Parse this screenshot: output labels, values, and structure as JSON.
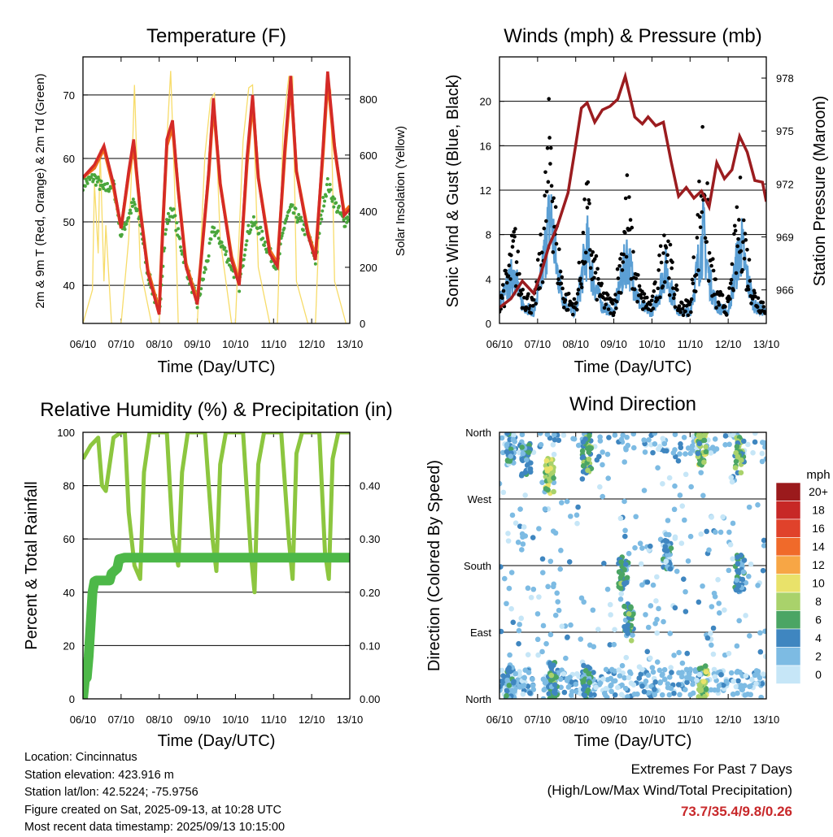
{
  "panels": {
    "temperature": {
      "title": "Temperature (F)",
      "ylabel_left": "2m & 9m T (Red, Orange) & 2m Td (Green)",
      "ylabel_right": "Solar Insolation (Yellow)",
      "xlabel": "Time (Day/UTC)"
    },
    "winds": {
      "title": "Winds (mph) & Pressure (mb)",
      "ylabel_left": "Sonic Wind & Gust (Blue, Black)",
      "ylabel_right": "Station Pressure (Maroon)",
      "xlabel": "Time (Day/UTC)"
    },
    "humidity": {
      "title": "Relative Humidity (%) & Precipitation (in)",
      "ylabel_left": "Percent & Total Rainfall",
      "xlabel": "Time (Day/UTC)"
    },
    "direction": {
      "title": "Wind Direction",
      "ylabel_left": "Direction (Colored By Speed)",
      "xlabel": "Time (Day/UTC)",
      "legend_title": "mph"
    }
  },
  "station_info": {
    "location": "Location: Cincinnatus",
    "elevation": "Station elevation: 423.916 m",
    "latlon": "Station lat/lon: 42.5224; -75.9756",
    "created": "Figure created on Sat, 2025-09-13, at 10:28 UTC",
    "recent": "Most recent data timestamp: 2025/09/13 10:15:00"
  },
  "extremes": {
    "line1": "Extremes For Past 7 Days",
    "line2": "(High/Low/Max Wind/Total Precipitation)",
    "values": "73.7/35.4/9.8/0.26"
  },
  "colors": {
    "temp_2m": "#d42a27",
    "temp_9m": "#ef6b1a",
    "dewpoint": "#4aa63c",
    "solar": "#f7dc6a",
    "wind": "#5b9fd4",
    "gust": "#000000",
    "pressure": "#9b1c1f",
    "rh": "#8cc63f",
    "precip": "#4db848",
    "extremes": "#c8282a"
  },
  "chart_data": [
    {
      "type": "line",
      "title": "Temperature (F)",
      "xlabel": "Time (Day/UTC)",
      "ylabel": "2m & 9m T (Red, Orange) & 2m Td (Green)",
      "ylabel_right": "Solar Insolation (Yellow)",
      "xlim": [
        0,
        7
      ],
      "ylim": [
        34,
        76
      ],
      "ylim_right": [
        0,
        950
      ],
      "x_ticks": [
        "06/10",
        "07/10",
        "08/10",
        "09/10",
        "10/10",
        "11/10",
        "12/10",
        "13/10"
      ],
      "y_ticks": [
        40,
        50,
        60,
        70
      ],
      "y_ticks_right": [
        0,
        200,
        400,
        600,
        800
      ],
      "grid": true,
      "series": [
        {
          "name": "2m T",
          "axis": "left",
          "x": [
            0,
            0.3,
            0.55,
            0.8,
            1.0,
            1.2,
            1.33,
            1.5,
            1.7,
            2.0,
            2.1,
            2.2,
            2.35,
            2.5,
            2.7,
            3.0,
            3.3,
            3.42,
            3.6,
            3.9,
            4.1,
            4.3,
            4.45,
            4.6,
            4.9,
            5.1,
            5.3,
            5.45,
            5.6,
            5.9,
            6.1,
            6.3,
            6.42,
            6.6,
            6.85,
            7.0
          ],
          "y": [
            57,
            59,
            62,
            56,
            49,
            58,
            63,
            52,
            42,
            35.4,
            50,
            63,
            66,
            55,
            43,
            37,
            58,
            69.5,
            56,
            44,
            40,
            60,
            70,
            57,
            45,
            43,
            62,
            73,
            58,
            48,
            44,
            62,
            73.7,
            62,
            51,
            52
          ]
        },
        {
          "name": "9m T",
          "axis": "left",
          "x": [
            0,
            0.3,
            0.55,
            0.8,
            1.0,
            1.2,
            1.33,
            1.5,
            1.7,
            2.0,
            2.1,
            2.2,
            2.35,
            2.5,
            2.7,
            3.0,
            3.3,
            3.42,
            3.6,
            3.9,
            4.1,
            4.3,
            4.45,
            4.6,
            4.9,
            5.1,
            5.3,
            5.45,
            5.6,
            5.9,
            6.1,
            6.3,
            6.42,
            6.6,
            6.85,
            7.0
          ],
          "y": [
            57,
            58.5,
            61.5,
            55.5,
            49,
            57.5,
            62,
            52,
            42.5,
            36,
            50,
            62,
            65,
            55,
            43.5,
            37.5,
            57.5,
            68.5,
            56,
            44.5,
            40.5,
            59,
            69,
            57,
            45.5,
            43.5,
            61,
            72,
            58,
            48.5,
            44.5,
            61,
            72.5,
            61.5,
            51.5,
            52.5
          ]
        },
        {
          "name": "2m Td",
          "axis": "left",
          "x": [
            0,
            0.3,
            0.55,
            0.8,
            1.0,
            1.2,
            1.33,
            1.5,
            1.7,
            2.0,
            2.1,
            2.2,
            2.35,
            2.5,
            2.7,
            3.0,
            3.3,
            3.42,
            3.6,
            3.9,
            4.1,
            4.3,
            4.45,
            4.6,
            4.9,
            5.1,
            5.3,
            5.45,
            5.6,
            5.9,
            6.1,
            6.3,
            6.42,
            6.6,
            6.85,
            7.0
          ],
          "y": [
            56,
            57,
            55,
            56,
            48,
            51,
            53,
            50,
            42,
            35.4,
            44,
            50,
            52,
            48,
            43,
            37,
            45,
            49,
            47,
            43,
            40,
            48,
            50,
            49,
            45,
            43,
            50,
            52,
            51,
            48,
            44,
            53,
            56,
            53,
            50,
            51
          ]
        },
        {
          "name": "Solar Insolation",
          "axis": "right",
          "x": [
            0,
            0.25,
            0.3,
            0.4,
            0.45,
            0.55,
            0.6,
            0.75,
            1.0,
            1.2,
            1.3,
            1.35,
            1.5,
            1.8,
            2.0,
            2.1,
            2.2,
            2.3,
            2.4,
            2.5,
            2.8,
            3.0,
            3.2,
            3.35,
            3.45,
            3.6,
            3.9,
            4.0,
            4.2,
            4.35,
            4.45,
            4.6,
            4.9,
            5.1,
            5.25,
            5.4,
            5.5,
            5.6,
            5.9,
            6.1,
            6.3,
            6.4,
            6.5,
            6.6,
            6.9,
            7.0
          ],
          "y": [
            0,
            120,
            500,
            250,
            620,
            150,
            350,
            0,
            0,
            300,
            620,
            850,
            200,
            0,
            0,
            320,
            650,
            900,
            500,
            0,
            0,
            0,
            600,
            800,
            820,
            300,
            0,
            0,
            650,
            840,
            850,
            200,
            0,
            0,
            700,
            880,
            880,
            150,
            0,
            0,
            700,
            880,
            830,
            150,
            0,
            0
          ]
        }
      ]
    },
    {
      "type": "line",
      "title": "Winds (mph) & Pressure (mb)",
      "xlabel": "Time (Day/UTC)",
      "ylabel": "Sonic Wind & Gust (Blue, Black)",
      "ylabel_right": "Station Pressure (Maroon)",
      "xlim": [
        0,
        7
      ],
      "ylim": [
        0,
        24
      ],
      "ylim_right": [
        964.1,
        979.2
      ],
      "x_ticks": [
        "06/10",
        "07/10",
        "08/10",
        "09/10",
        "10/10",
        "11/10",
        "12/10",
        "13/10"
      ],
      "y_ticks": [
        0,
        4,
        8,
        12,
        16,
        20
      ],
      "y_ticks_right": [
        966,
        969,
        972,
        975,
        978
      ],
      "grid": true,
      "series": [
        {
          "name": "Sonic Wind",
          "axis": "left",
          "x": [
            0,
            0.2,
            0.4,
            0.55,
            0.7,
            0.9,
            1.1,
            1.25,
            1.35,
            1.5,
            1.7,
            2.0,
            2.2,
            2.3,
            2.45,
            2.7,
            3.0,
            3.2,
            3.35,
            3.5,
            3.7,
            4.0,
            4.2,
            4.35,
            4.5,
            4.7,
            5.0,
            5.2,
            5.35,
            5.5,
            5.7,
            6.0,
            6.2,
            6.35,
            6.5,
            6.7,
            7.0
          ],
          "y": [
            2,
            3,
            5,
            2,
            1.5,
            1,
            4,
            8,
            9.8,
            5,
            2,
            1,
            5,
            7,
            4,
            1.5,
            1,
            4,
            6,
            4,
            1.5,
            1,
            3,
            5,
            3,
            1,
            1,
            5,
            8,
            4,
            1.5,
            1,
            5,
            7,
            4,
            1.5,
            1
          ]
        },
        {
          "name": "Gust",
          "axis": "left",
          "x": [
            0,
            0.2,
            0.4,
            0.55,
            0.7,
            0.9,
            1.1,
            1.25,
            1.35,
            1.5,
            1.7,
            2.0,
            2.2,
            2.3,
            2.45,
            2.7,
            3.0,
            3.2,
            3.35,
            3.5,
            3.7,
            4.0,
            4.2,
            4.35,
            4.5,
            4.7,
            5.0,
            5.2,
            5.35,
            5.5,
            5.7,
            6.0,
            6.2,
            6.35,
            6.5,
            6.7,
            7.0
          ],
          "y": [
            3,
            5,
            9,
            4,
            3,
            2,
            8,
            16,
            21.8,
            9,
            3,
            2,
            9,
            13,
            7,
            3,
            2,
            8,
            13,
            7,
            3,
            2,
            6,
            11,
            6,
            2,
            2,
            10,
            20.2,
            8,
            3,
            2,
            9,
            13,
            7,
            3,
            2
          ]
        },
        {
          "name": "Station Pressure",
          "axis": "right",
          "x": [
            0,
            0.3,
            0.6,
            0.9,
            1.1,
            1.3,
            1.5,
            1.8,
            2.0,
            2.15,
            2.3,
            2.5,
            2.7,
            2.9,
            3.1,
            3.3,
            3.55,
            3.75,
            3.9,
            4.1,
            4.3,
            4.5,
            4.7,
            4.9,
            5.1,
            5.3,
            5.5,
            5.7,
            5.9,
            6.1,
            6.3,
            6.5,
            6.7,
            6.9,
            7.0
          ],
          "y": [
            965,
            965.5,
            966.5,
            965.8,
            967,
            968.5,
            969.5,
            971.5,
            974.2,
            976.3,
            976.6,
            975.5,
            976.2,
            976.4,
            976.8,
            978.1,
            975.8,
            975.4,
            975.8,
            975.3,
            975.5,
            973.3,
            971.3,
            971.8,
            971.2,
            971.6,
            970.7,
            973.2,
            972.3,
            972.8,
            974.7,
            973.8,
            972.2,
            972.1,
            971
          ]
        }
      ]
    },
    {
      "type": "line",
      "title": "Relative Humidity (%) & Precipitation (in)",
      "xlabel": "Time (Day/UTC)",
      "ylabel": "Percent & Total Rainfall",
      "xlim": [
        0,
        7
      ],
      "ylim": [
        0,
        100
      ],
      "ylim_right": [
        0,
        0.5
      ],
      "x_ticks": [
        "06/10",
        "07/10",
        "08/10",
        "09/10",
        "10/10",
        "11/10",
        "12/10",
        "13/10"
      ],
      "y_ticks": [
        0,
        20,
        40,
        60,
        80,
        100
      ],
      "y_ticks_right": [
        "0.00",
        "0.10",
        "0.20",
        "0.30",
        "0.40"
      ],
      "grid": true,
      "series": [
        {
          "name": "Relative Humidity",
          "axis": "left",
          "x": [
            0,
            0.2,
            0.4,
            0.5,
            0.6,
            0.8,
            1.0,
            1.1,
            1.2,
            1.35,
            1.5,
            1.6,
            1.75,
            2.0,
            2.2,
            2.35,
            2.5,
            2.6,
            2.75,
            3.0,
            3.2,
            3.4,
            3.5,
            3.6,
            3.75,
            4.0,
            4.2,
            4.4,
            4.5,
            4.6,
            4.75,
            5.0,
            5.2,
            5.4,
            5.5,
            5.6,
            5.75,
            6.0,
            6.2,
            6.35,
            6.45,
            6.55,
            6.7,
            7.0
          ],
          "y": [
            90,
            95,
            98,
            80,
            78,
            98,
            100,
            100,
            70,
            50,
            45,
            85,
            100,
            100,
            100,
            62,
            50,
            85,
            100,
            100,
            100,
            60,
            48,
            88,
            100,
            100,
            100,
            55,
            40,
            88,
            100,
            100,
            100,
            60,
            45,
            92,
            100,
            100,
            100,
            55,
            45,
            90,
            100,
            100
          ]
        },
        {
          "name": "Total Rainfall",
          "axis": "right",
          "x": [
            0,
            0.05,
            0.1,
            0.15,
            0.2,
            0.25,
            0.3,
            0.35,
            0.4,
            0.5,
            0.7,
            0.75,
            0.9,
            0.95,
            1.1,
            2.0,
            3.0,
            4.0,
            5.0,
            6.0,
            7.0
          ],
          "y": [
            0.0,
            0.035,
            0.04,
            0.08,
            0.14,
            0.2,
            0.22,
            0.222,
            0.222,
            0.222,
            0.222,
            0.235,
            0.245,
            0.262,
            0.265,
            0.265,
            0.265,
            0.265,
            0.265,
            0.265,
            0.265
          ]
        }
      ]
    },
    {
      "type": "scatter",
      "title": "Wind Direction",
      "xlabel": "Time (Day/UTC)",
      "ylabel": "Direction (Colored By Speed)",
      "xlim": [
        0,
        7
      ],
      "ylim": [
        0,
        360
      ],
      "x_ticks": [
        "06/10",
        "07/10",
        "08/10",
        "09/10",
        "10/10",
        "11/10",
        "12/10",
        "13/10"
      ],
      "y_ticks": [
        "North",
        "East",
        "South",
        "West",
        "North"
      ],
      "y_tick_values": [
        0,
        90,
        180,
        270,
        360
      ],
      "grid": true,
      "colorbar": {
        "title": "mph",
        "labels": [
          "20+",
          "18",
          "16",
          "14",
          "12",
          "10",
          "8",
          "6",
          "4",
          "2",
          "0"
        ],
        "colors": [
          "#9b1a1c",
          "#c72826",
          "#e0422b",
          "#f06a2a",
          "#f7a645",
          "#e9e26a",
          "#a9d26b",
          "#4ba564",
          "#3f86c0",
          "#7dbbe3",
          "#c6e6f7"
        ]
      },
      "clusters": [
        {
          "x": 0.3,
          "dir": 20,
          "speed": 3
        },
        {
          "x": 0.3,
          "dir": 340,
          "speed": 3
        },
        {
          "x": 0.7,
          "dir": 320,
          "speed": 4
        },
        {
          "x": 1.3,
          "dir": 300,
          "speed": 8
        },
        {
          "x": 1.4,
          "dir": 25,
          "speed": 5
        },
        {
          "x": 2.3,
          "dir": 330,
          "speed": 6
        },
        {
          "x": 2.3,
          "dir": 20,
          "speed": 4
        },
        {
          "x": 3.25,
          "dir": 170,
          "speed": 5
        },
        {
          "x": 3.4,
          "dir": 100,
          "speed": 5
        },
        {
          "x": 4.4,
          "dir": 200,
          "speed": 3
        },
        {
          "x": 5.3,
          "dir": 340,
          "speed": 7
        },
        {
          "x": 5.35,
          "dir": 20,
          "speed": 8
        },
        {
          "x": 6.3,
          "dir": 330,
          "speed": 6
        },
        {
          "x": 6.3,
          "dir": 170,
          "speed": 4
        }
      ]
    }
  ]
}
